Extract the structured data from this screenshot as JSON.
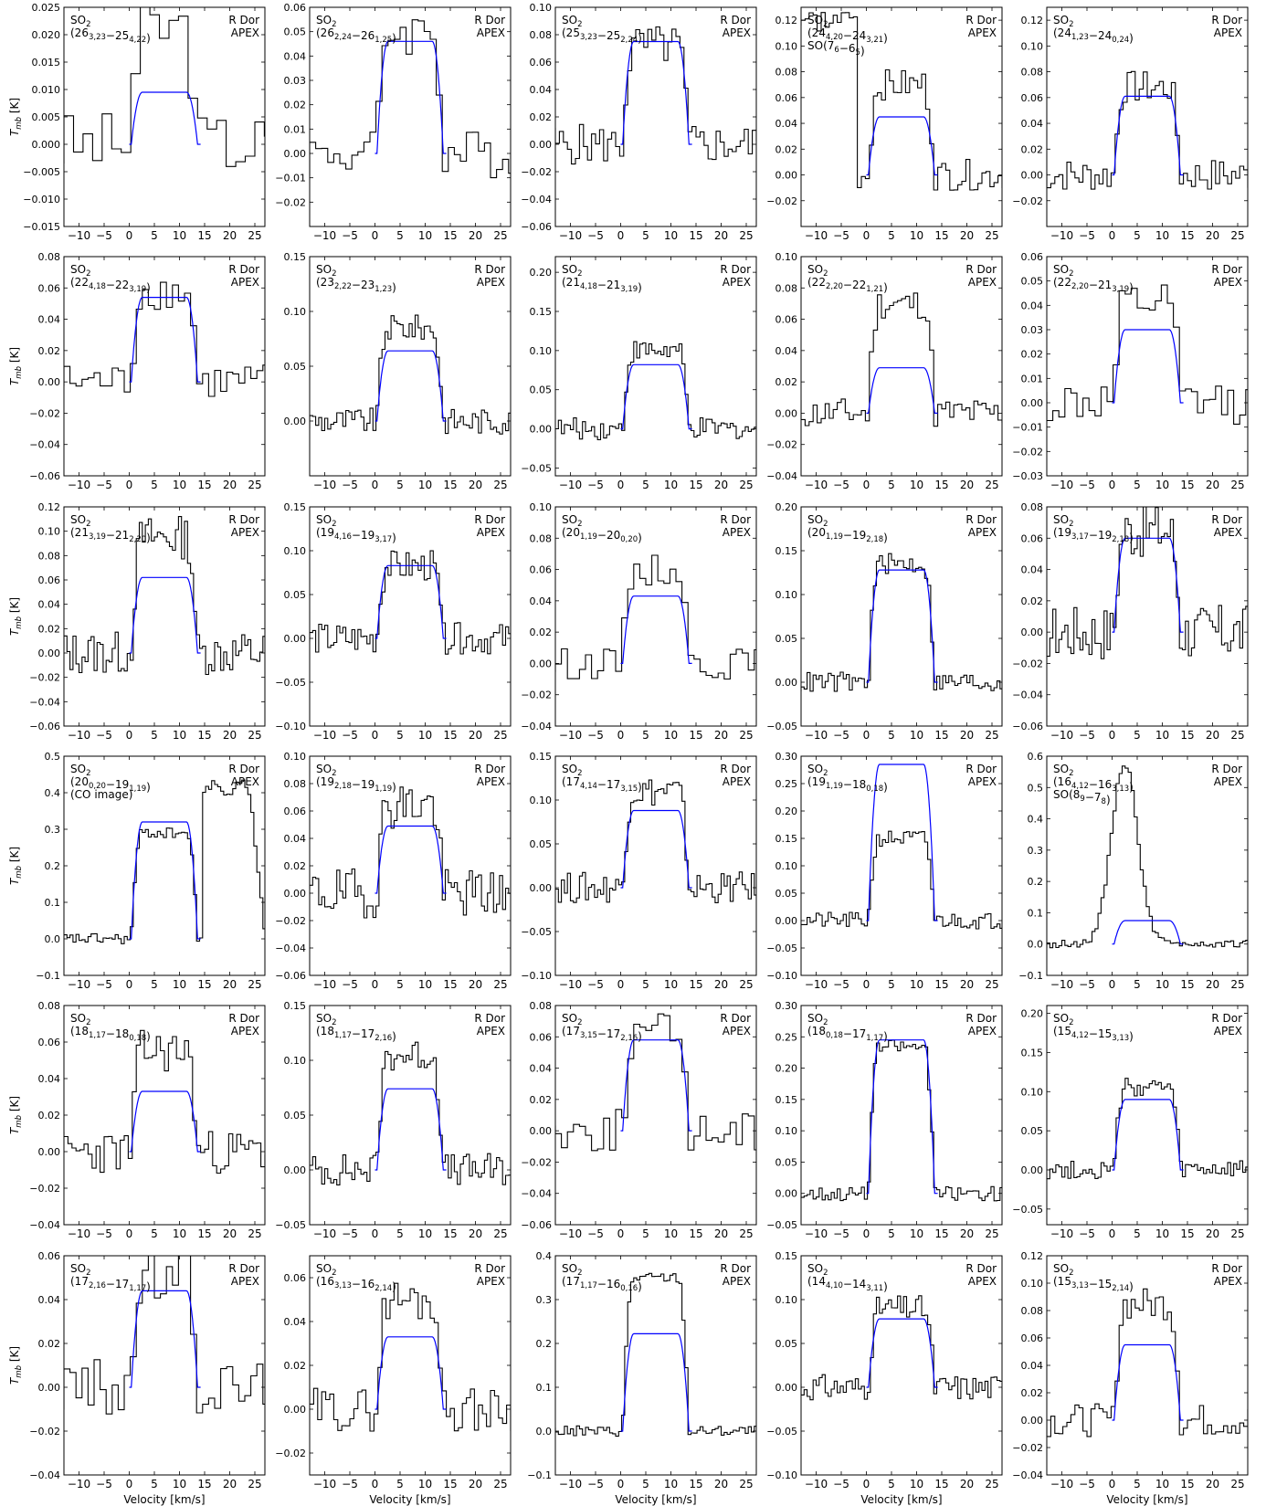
{
  "figure": {
    "xlabel": "Velocity [km/s]",
    "ylabel": "T_mb [K]",
    "star": "R Dor",
    "telescope": "APEX",
    "colors": {
      "observed": "#000000",
      "model": "#0000ff"
    }
  },
  "chart_data": [
    {
      "type": "line",
      "species": "SO2",
      "transition": "(26_{3,23}−25_{4,22})",
      "ylim": [
        -0.015,
        0.025
      ],
      "yticks": [
        -0.015,
        -0.01,
        -0.005,
        0.0,
        0.005,
        0.01,
        0.015,
        0.02,
        0.025
      ],
      "ytick_labels": [
        "−0.015",
        "−0.010",
        "−0.005",
        "0.000",
        "0.005",
        "0.010",
        "0.015",
        "0.020",
        "0.025"
      ],
      "peak_model": 0.0095,
      "peak_obs": 0.021,
      "noise": 0.006,
      "binw": 1.9
    },
    {
      "type": "line",
      "species": "SO2",
      "transition": "(26_{2,24}−26_{1,25})",
      "ylim": [
        -0.03,
        0.06
      ],
      "yticks": [
        -0.02,
        -0.01,
        0.0,
        0.01,
        0.02,
        0.03,
        0.04,
        0.05,
        0.06
      ],
      "ytick_labels": [
        "−0.02",
        "−0.01",
        "0.00",
        "0.01",
        "0.02",
        "0.03",
        "0.04",
        "0.05",
        "0.06"
      ],
      "peak_model": 0.046,
      "peak_obs": 0.05,
      "noise": 0.01,
      "binw": 1.2
    },
    {
      "type": "line",
      "species": "SO2",
      "transition": "(25_{3,23}−25_{2,24})",
      "ylim": [
        -0.06,
        0.1
      ],
      "yticks": [
        -0.06,
        -0.04,
        -0.02,
        0.0,
        0.02,
        0.04,
        0.06,
        0.08,
        0.1
      ],
      "ytick_labels": [
        "−0.06",
        "−0.04",
        "−0.02",
        "0.00",
        "0.02",
        "0.04",
        "0.06",
        "0.08",
        "0.10"
      ],
      "peak_model": 0.075,
      "peak_obs": 0.072,
      "noise": 0.015,
      "binw": 0.8
    },
    {
      "type": "line",
      "species": "SO2",
      "transition": "(24_{4,20}−24_{3,21})",
      "extra": "SO(7_6−6_5)",
      "ylim": [
        -0.04,
        0.13
      ],
      "yticks": [
        -0.02,
        0.0,
        0.02,
        0.04,
        0.06,
        0.08,
        0.1,
        0.12
      ],
      "ytick_labels": [
        "−0.02",
        "0.00",
        "0.02",
        "0.04",
        "0.06",
        "0.08",
        "0.10",
        "0.12"
      ],
      "peak_model": 0.045,
      "peak_obs": 0.07,
      "noise": 0.012,
      "binw": 0.8,
      "blend_edge": true
    },
    {
      "type": "line",
      "species": "SO2",
      "transition": "(24_{1,23}−24_{0,24})",
      "ylim": [
        -0.04,
        0.13
      ],
      "yticks": [
        -0.02,
        0.0,
        0.02,
        0.04,
        0.06,
        0.08,
        0.1,
        0.12
      ],
      "ytick_labels": [
        "−0.02",
        "0.00",
        "0.02",
        "0.04",
        "0.06",
        "0.08",
        "0.10",
        "0.12"
      ],
      "peak_model": 0.061,
      "peak_obs": 0.068,
      "noise": 0.013,
      "binw": 0.8
    },
    {
      "type": "line",
      "species": "SO2",
      "transition": "(22_{4,18}−22_{3,19})",
      "ylim": [
        -0.06,
        0.08
      ],
      "yticks": [
        -0.06,
        -0.04,
        -0.02,
        0.0,
        0.02,
        0.04,
        0.06,
        0.08
      ],
      "ytick_labels": [
        "−0.06",
        "−0.04",
        "−0.02",
        "0.00",
        "0.02",
        "0.04",
        "0.06",
        "0.08"
      ],
      "peak_model": 0.054,
      "peak_obs": 0.058,
      "noise": 0.012,
      "binw": 1.2
    },
    {
      "type": "line",
      "species": "SO2",
      "transition": "(23_{2,22}−23_{1,23})",
      "ylim": [
        -0.05,
        0.15
      ],
      "yticks": [
        0.0,
        0.05,
        0.1,
        0.15
      ],
      "ytick_labels": [
        "0.00",
        "0.05",
        "0.10",
        "0.15"
      ],
      "peak_model": 0.064,
      "peak_obs": 0.085,
      "noise": 0.012,
      "binw": 0.6
    },
    {
      "type": "line",
      "species": "SO2",
      "transition": "(21_{4,18}−21_{3,19})",
      "ylim": [
        -0.06,
        0.22
      ],
      "yticks": [
        -0.05,
        0.0,
        0.05,
        0.1,
        0.15,
        0.2
      ],
      "ytick_labels": [
        "−0.05",
        "0.00",
        "0.05",
        "0.10",
        "0.15",
        "0.20"
      ],
      "peak_model": 0.082,
      "peak_obs": 0.1,
      "noise": 0.014,
      "binw": 0.6
    },
    {
      "type": "line",
      "species": "SO2",
      "transition": "(22_{2,20}−22_{1,21})",
      "ylim": [
        -0.04,
        0.1
      ],
      "yticks": [
        -0.04,
        -0.02,
        0.0,
        0.02,
        0.04,
        0.06,
        0.08,
        0.1
      ],
      "ytick_labels": [
        "−0.04",
        "−0.02",
        "0.00",
        "0.02",
        "0.04",
        "0.06",
        "0.08",
        "0.10"
      ],
      "peak_model": 0.029,
      "peak_obs": 0.07,
      "noise": 0.01,
      "binw": 0.8
    },
    {
      "type": "line",
      "species": "SO2",
      "transition": "(22_{2,20}−21_{3,19})",
      "ylim": [
        -0.03,
        0.06
      ],
      "yticks": [
        -0.03,
        -0.02,
        -0.01,
        0.0,
        0.01,
        0.02,
        0.03,
        0.04,
        0.05,
        0.06
      ],
      "ytick_labels": [
        "−0.03",
        "−0.02",
        "−0.01",
        "0.00",
        "0.01",
        "0.02",
        "0.03",
        "0.04",
        "0.05",
        "0.06"
      ],
      "peak_model": 0.03,
      "peak_obs": 0.04,
      "noise": 0.009,
      "binw": 1.2
    },
    {
      "type": "line",
      "species": "SO2",
      "transition": "(21_{3,19}−21_{2,20})",
      "ylim": [
        -0.06,
        0.12
      ],
      "yticks": [
        -0.06,
        -0.04,
        -0.02,
        0.0,
        0.02,
        0.04,
        0.06,
        0.08,
        0.1,
        0.12
      ],
      "ytick_labels": [
        "−0.06",
        "−0.04",
        "−0.02",
        "0.00",
        "0.02",
        "0.04",
        "0.06",
        "0.08",
        "0.10",
        "0.12"
      ],
      "peak_model": 0.062,
      "peak_obs": 0.095,
      "noise": 0.018,
      "binw": 0.6
    },
    {
      "type": "line",
      "species": "SO2",
      "transition": "(19_{4,16}−19_{3,17})",
      "ylim": [
        -0.1,
        0.15
      ],
      "yticks": [
        -0.1,
        -0.05,
        0.0,
        0.05,
        0.1,
        0.15
      ],
      "ytick_labels": [
        "−0.10",
        "−0.05",
        "0.00",
        "0.05",
        "0.10",
        "0.15"
      ],
      "peak_model": 0.083,
      "peak_obs": 0.082,
      "noise": 0.018,
      "binw": 0.6
    },
    {
      "type": "line",
      "species": "SO2",
      "transition": "(20_{1,19}−20_{0,20})",
      "ylim": [
        -0.04,
        0.1
      ],
      "yticks": [
        -0.04,
        -0.02,
        0.0,
        0.02,
        0.04,
        0.06,
        0.08,
        0.1
      ],
      "ytick_labels": [
        "−0.04",
        "−0.02",
        "0.00",
        "0.02",
        "0.04",
        "0.06",
        "0.08",
        "0.10"
      ],
      "peak_model": 0.043,
      "peak_obs": 0.06,
      "noise": 0.01,
      "binw": 1.2
    },
    {
      "type": "line",
      "species": "SO2",
      "transition": "(20_{1,19}−19_{2,18})",
      "ylim": [
        -0.05,
        0.2
      ],
      "yticks": [
        -0.05,
        0.0,
        0.05,
        0.1,
        0.15,
        0.2
      ],
      "ytick_labels": [
        "−0.05",
        "0.00",
        "0.05",
        "0.10",
        "0.15",
        "0.20"
      ],
      "peak_model": 0.128,
      "peak_obs": 0.135,
      "noise": 0.012,
      "binw": 0.6
    },
    {
      "type": "line",
      "species": "SO2",
      "transition": "(19_{3,17}−19_{2,18})",
      "ylim": [
        -0.06,
        0.08
      ],
      "yticks": [
        -0.06,
        -0.04,
        -0.02,
        0.0,
        0.02,
        0.04,
        0.06,
        0.08
      ],
      "ytick_labels": [
        "−0.06",
        "−0.04",
        "−0.02",
        "0.00",
        "0.02",
        "0.04",
        "0.06",
        "0.08"
      ],
      "peak_model": 0.06,
      "peak_obs": 0.065,
      "noise": 0.018,
      "binw": 0.6
    },
    {
      "type": "line",
      "species": "SO2",
      "transition": "(20_{0,20}−19_{1,19})",
      "extra": "(CO image)",
      "ylim": [
        -0.1,
        0.5
      ],
      "yticks": [
        -0.1,
        0.0,
        0.1,
        0.2,
        0.3,
        0.4,
        0.5
      ],
      "ytick_labels": [
        "−0.1",
        "0.0",
        "0.1",
        "0.2",
        "0.3",
        "0.4",
        "0.5"
      ],
      "peak_model": 0.32,
      "peak_obs": 0.29,
      "noise": 0.015,
      "binw": 0.6,
      "co_image": true
    },
    {
      "type": "line",
      "species": "SO2",
      "transition": "(19_{2,18}−19_{1,19})",
      "ylim": [
        -0.06,
        0.1
      ],
      "yticks": [
        -0.06,
        -0.04,
        -0.02,
        0.0,
        0.02,
        0.04,
        0.06,
        0.08,
        0.1
      ],
      "ytick_labels": [
        "−0.06",
        "−0.04",
        "−0.02",
        "0.00",
        "0.02",
        "0.04",
        "0.06",
        "0.08",
        "0.10"
      ],
      "peak_model": 0.049,
      "peak_obs": 0.065,
      "noise": 0.018,
      "binw": 0.6
    },
    {
      "type": "line",
      "species": "SO2",
      "transition": "(17_{4,14}−17_{3,15})",
      "ylim": [
        -0.1,
        0.15
      ],
      "yticks": [
        -0.1,
        -0.05,
        0.0,
        0.05,
        0.1,
        0.15
      ],
      "ytick_labels": [
        "−0.10",
        "−0.05",
        "0.00",
        "0.05",
        "0.10",
        "0.15"
      ],
      "peak_model": 0.088,
      "peak_obs": 0.11,
      "noise": 0.018,
      "binw": 0.6
    },
    {
      "type": "line",
      "species": "SO2",
      "transition": "(19_{1,19}−18_{0,18})",
      "ylim": [
        -0.1,
        0.3
      ],
      "yticks": [
        -0.1,
        -0.05,
        0.0,
        0.05,
        0.1,
        0.15,
        0.2,
        0.25,
        0.3
      ],
      "ytick_labels": [
        "−0.10",
        "−0.05",
        "0.00",
        "0.05",
        "0.10",
        "0.15",
        "0.20",
        "0.25",
        "0.30"
      ],
      "peak_model": 0.285,
      "peak_obs": 0.15,
      "noise": 0.015,
      "binw": 0.6
    },
    {
      "type": "line",
      "species": "SO2",
      "transition": "(16_{4,12}−16_{3,13})",
      "extra": "SO(8_9−7_8)",
      "ylim": [
        -0.1,
        0.6
      ],
      "yticks": [
        -0.1,
        0.0,
        0.1,
        0.2,
        0.3,
        0.4,
        0.5,
        0.6
      ],
      "ytick_labels": [
        "−0.1",
        "0.0",
        "0.1",
        "0.2",
        "0.3",
        "0.4",
        "0.5",
        "0.6"
      ],
      "peak_model": 0.075,
      "peak_obs": 0.58,
      "noise": 0.012,
      "binw": 0.6,
      "so_blend": true
    },
    {
      "type": "line",
      "species": "SO2",
      "transition": "(18_{1,17}−18_{0,18})",
      "ylim": [
        -0.04,
        0.08
      ],
      "yticks": [
        -0.04,
        -0.02,
        0.0,
        0.02,
        0.04,
        0.06,
        0.08
      ],
      "ytick_labels": [
        "−0.04",
        "−0.02",
        "0.00",
        "0.02",
        "0.04",
        "0.06",
        "0.08"
      ],
      "peak_model": 0.033,
      "peak_obs": 0.055,
      "noise": 0.012,
      "binw": 0.8
    },
    {
      "type": "line",
      "species": "SO2",
      "transition": "(18_{1,17}−17_{2,16})",
      "ylim": [
        -0.05,
        0.15
      ],
      "yticks": [
        -0.05,
        0.0,
        0.05,
        0.1,
        0.15
      ],
      "ytick_labels": [
        "−0.05",
        "0.00",
        "0.05",
        "0.10",
        "0.15"
      ],
      "peak_model": 0.074,
      "peak_obs": 0.105,
      "noise": 0.015,
      "binw": 0.6
    },
    {
      "type": "line",
      "species": "SO2",
      "transition": "(17_{3,15}−17_{2,16})",
      "ylim": [
        -0.06,
        0.08
      ],
      "yticks": [
        -0.06,
        -0.04,
        -0.02,
        0.0,
        0.02,
        0.04,
        0.06,
        0.08
      ],
      "ytick_labels": [
        "−0.06",
        "−0.04",
        "−0.02",
        "0.00",
        "0.02",
        "0.04",
        "0.06",
        "0.08"
      ],
      "peak_model": 0.058,
      "peak_obs": 0.062,
      "noise": 0.014,
      "binw": 1.2
    },
    {
      "type": "line",
      "species": "SO2",
      "transition": "(18_{0,18}−17_{1,17})",
      "ylim": [
        -0.05,
        0.3
      ],
      "yticks": [
        -0.05,
        0.0,
        0.05,
        0.1,
        0.15,
        0.2,
        0.25,
        0.3
      ],
      "ytick_labels": [
        "−0.05",
        "0.00",
        "0.05",
        "0.10",
        "0.15",
        "0.20",
        "0.25",
        "0.30"
      ],
      "peak_model": 0.245,
      "peak_obs": 0.235,
      "noise": 0.012,
      "binw": 0.6
    },
    {
      "type": "line",
      "species": "SO2",
      "transition": "(15_{4,12}−15_{3,13})",
      "ylim": [
        -0.07,
        0.21
      ],
      "yticks": [
        -0.05,
        0.0,
        0.05,
        0.1,
        0.15,
        0.2
      ],
      "ytick_labels": [
        "−0.05",
        "0.00",
        "0.05",
        "0.10",
        "0.15",
        "0.20"
      ],
      "peak_model": 0.09,
      "peak_obs": 0.105,
      "noise": 0.012,
      "binw": 0.6
    },
    {
      "type": "line",
      "species": "SO2",
      "transition": "(17_{2,16}−17_{1,17})",
      "ylim": [
        -0.04,
        0.06
      ],
      "yticks": [
        -0.04,
        -0.02,
        0.0,
        0.02,
        0.04,
        0.06
      ],
      "ytick_labels": [
        "−0.04",
        "−0.02",
        "0.00",
        "0.02",
        "0.04",
        "0.06"
      ],
      "peak_model": 0.044,
      "peak_obs": 0.05,
      "noise": 0.013,
      "binw": 1.2
    },
    {
      "type": "line",
      "species": "SO2",
      "transition": "(16_{3,13}−16_{2,14})",
      "ylim": [
        -0.03,
        0.07
      ],
      "yticks": [
        -0.02,
        0.0,
        0.02,
        0.04,
        0.06
      ],
      "ytick_labels": [
        "−0.02",
        "0.00",
        "0.02",
        "0.04",
        "0.06"
      ],
      "peak_model": 0.033,
      "peak_obs": 0.05,
      "noise": 0.01,
      "binw": 0.8
    },
    {
      "type": "line",
      "species": "SO2",
      "transition": "(17_{1,17}−16_{0,16})",
      "ylim": [
        -0.1,
        0.4
      ],
      "yticks": [
        -0.1,
        0.0,
        0.1,
        0.2,
        0.3,
        0.4
      ],
      "ytick_labels": [
        "−0.1",
        "0.0",
        "0.1",
        "0.2",
        "0.3",
        "0.4"
      ],
      "peak_model": 0.222,
      "peak_obs": 0.35,
      "noise": 0.012,
      "binw": 0.6
    },
    {
      "type": "line",
      "species": "SO2",
      "transition": "(14_{4,10}−14_{3,11})",
      "ylim": [
        -0.1,
        0.15
      ],
      "yticks": [
        -0.1,
        -0.05,
        0.0,
        0.05,
        0.1,
        0.15
      ],
      "ytick_labels": [
        "−0.10",
        "−0.05",
        "0.00",
        "0.05",
        "0.10",
        "0.15"
      ],
      "peak_model": 0.078,
      "peak_obs": 0.09,
      "noise": 0.015,
      "binw": 0.6
    },
    {
      "type": "line",
      "species": "SO2",
      "transition": "(15_{3,13}−15_{2,14})",
      "ylim": [
        -0.04,
        0.12
      ],
      "yticks": [
        -0.04,
        -0.02,
        0.0,
        0.02,
        0.04,
        0.06,
        0.08,
        0.1,
        0.12
      ],
      "ytick_labels": [
        "−0.04",
        "−0.02",
        "0.00",
        "0.02",
        "0.04",
        "0.06",
        "0.08",
        "0.10",
        "0.12"
      ],
      "peak_model": 0.055,
      "peak_obs": 0.085,
      "noise": 0.012,
      "binw": 0.8
    }
  ]
}
